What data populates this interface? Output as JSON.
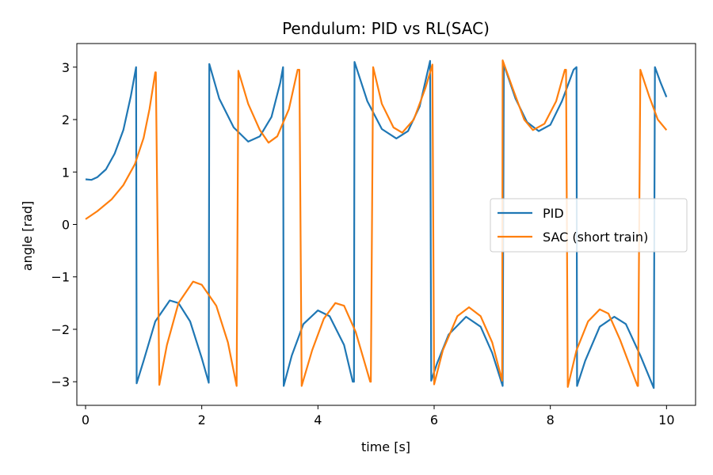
{
  "chart_data": {
    "type": "line",
    "title": "Pendulum: PID vs RL(SAC)",
    "xlabel": "time [s]",
    "ylabel": "angle [rad]",
    "xlim": [
      -0.15,
      10.5
    ],
    "ylim": [
      -3.45,
      3.45
    ],
    "xticks": [
      0,
      2,
      4,
      6,
      8,
      10
    ],
    "yticks": [
      3,
      2,
      1,
      0,
      -1,
      -2,
      -3
    ],
    "ytick_labels": [
      "3",
      "2",
      "1",
      "0",
      "−1",
      "−2",
      "−3"
    ],
    "grid": false,
    "legend_position": "center-right",
    "series": [
      {
        "name": "PID",
        "color": "#1f77b4",
        "points": [
          [
            0.0,
            0.86
          ],
          [
            0.1,
            0.85
          ],
          [
            0.2,
            0.9
          ],
          [
            0.35,
            1.05
          ],
          [
            0.5,
            1.35
          ],
          [
            0.65,
            1.8
          ],
          [
            0.78,
            2.45
          ],
          [
            0.87,
            3.0
          ],
          [
            0.88,
            -3.03
          ],
          [
            1.0,
            -2.6
          ],
          [
            1.2,
            -1.85
          ],
          [
            1.45,
            -1.45
          ],
          [
            1.6,
            -1.5
          ],
          [
            1.8,
            -1.85
          ],
          [
            2.0,
            -2.55
          ],
          [
            2.12,
            -3.02
          ],
          [
            2.13,
            3.06
          ],
          [
            2.3,
            2.4
          ],
          [
            2.55,
            1.85
          ],
          [
            2.8,
            1.58
          ],
          [
            3.0,
            1.68
          ],
          [
            3.2,
            2.05
          ],
          [
            3.35,
            2.7
          ],
          [
            3.4,
            3.0
          ],
          [
            3.41,
            -3.08
          ],
          [
            3.55,
            -2.5
          ],
          [
            3.75,
            -1.9
          ],
          [
            4.0,
            -1.64
          ],
          [
            4.2,
            -1.75
          ],
          [
            4.45,
            -2.3
          ],
          [
            4.6,
            -3.0
          ],
          [
            4.62,
            -3.0
          ],
          [
            4.63,
            3.1
          ],
          [
            4.85,
            2.35
          ],
          [
            5.1,
            1.82
          ],
          [
            5.35,
            1.64
          ],
          [
            5.55,
            1.78
          ],
          [
            5.75,
            2.25
          ],
          [
            5.93,
            3.12
          ],
          [
            5.95,
            -2.98
          ],
          [
            6.05,
            -2.65
          ],
          [
            6.25,
            -2.1
          ],
          [
            6.55,
            -1.76
          ],
          [
            6.8,
            -1.95
          ],
          [
            7.0,
            -2.45
          ],
          [
            7.18,
            -3.08
          ],
          [
            7.2,
            3.05
          ],
          [
            7.4,
            2.4
          ],
          [
            7.6,
            1.95
          ],
          [
            7.8,
            1.78
          ],
          [
            8.0,
            1.9
          ],
          [
            8.2,
            2.35
          ],
          [
            8.4,
            2.95
          ],
          [
            8.45,
            3.0
          ],
          [
            8.46,
            -3.08
          ],
          [
            8.6,
            -2.6
          ],
          [
            8.85,
            -1.95
          ],
          [
            9.1,
            -1.76
          ],
          [
            9.3,
            -1.9
          ],
          [
            9.55,
            -2.5
          ],
          [
            9.78,
            -3.12
          ],
          [
            9.8,
            3.0
          ],
          [
            9.9,
            2.7
          ],
          [
            10.0,
            2.43
          ]
        ]
      },
      {
        "name": "SAC (short train)",
        "color": "#ff7f0e",
        "points": [
          [
            0.0,
            0.1
          ],
          [
            0.2,
            0.25
          ],
          [
            0.45,
            0.48
          ],
          [
            0.65,
            0.75
          ],
          [
            0.85,
            1.15
          ],
          [
            1.0,
            1.65
          ],
          [
            1.1,
            2.2
          ],
          [
            1.2,
            2.9
          ],
          [
            1.21,
            2.9
          ],
          [
            1.27,
            -3.06
          ],
          [
            1.4,
            -2.3
          ],
          [
            1.6,
            -1.5
          ],
          [
            1.85,
            -1.09
          ],
          [
            2.0,
            -1.15
          ],
          [
            2.25,
            -1.55
          ],
          [
            2.45,
            -2.25
          ],
          [
            2.6,
            -3.08
          ],
          [
            2.63,
            2.93
          ],
          [
            2.8,
            2.3
          ],
          [
            3.0,
            1.8
          ],
          [
            3.15,
            1.56
          ],
          [
            3.3,
            1.68
          ],
          [
            3.5,
            2.2
          ],
          [
            3.65,
            2.95
          ],
          [
            3.68,
            2.95
          ],
          [
            3.72,
            -3.08
          ],
          [
            3.9,
            -2.4
          ],
          [
            4.1,
            -1.8
          ],
          [
            4.3,
            -1.5
          ],
          [
            4.45,
            -1.55
          ],
          [
            4.65,
            -2.05
          ],
          [
            4.9,
            -3.0
          ],
          [
            4.91,
            -3.0
          ],
          [
            4.95,
            3.0
          ],
          [
            5.1,
            2.3
          ],
          [
            5.3,
            1.85
          ],
          [
            5.45,
            1.75
          ],
          [
            5.65,
            2.0
          ],
          [
            5.85,
            2.6
          ],
          [
            5.97,
            3.05
          ],
          [
            6.0,
            -3.05
          ],
          [
            6.15,
            -2.4
          ],
          [
            6.4,
            -1.75
          ],
          [
            6.6,
            -1.58
          ],
          [
            6.8,
            -1.75
          ],
          [
            7.0,
            -2.25
          ],
          [
            7.17,
            -2.98
          ],
          [
            7.18,
            3.13
          ],
          [
            7.35,
            2.6
          ],
          [
            7.55,
            2.0
          ],
          [
            7.7,
            1.8
          ],
          [
            7.9,
            1.92
          ],
          [
            8.1,
            2.35
          ],
          [
            8.25,
            2.95
          ],
          [
            8.27,
            2.95
          ],
          [
            8.3,
            -3.1
          ],
          [
            8.45,
            -2.4
          ],
          [
            8.65,
            -1.85
          ],
          [
            8.85,
            -1.62
          ],
          [
            9.0,
            -1.7
          ],
          [
            9.2,
            -2.2
          ],
          [
            9.5,
            -3.08
          ],
          [
            9.51,
            -3.08
          ],
          [
            9.55,
            2.95
          ],
          [
            9.7,
            2.45
          ],
          [
            9.85,
            2.0
          ],
          [
            10.0,
            1.8
          ]
        ]
      }
    ]
  }
}
